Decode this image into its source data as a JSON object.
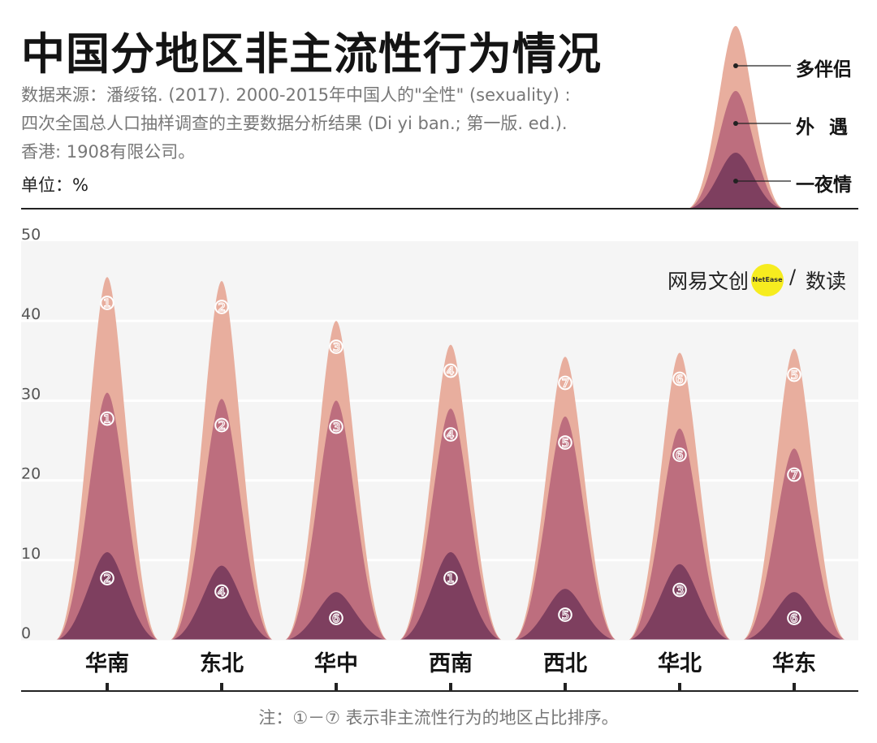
{
  "header": {
    "title": "中国分地区非主流性行为情况",
    "source_line1": "数据来源：潘绥铭. (2017). 2000-2015年中国人的\"全性\" (sexuality) :",
    "source_line2": "四次全国总人口抽样调查的主要数据分析结果 (Di yi ban.; 第一版. ed.).",
    "source_line3": "香港: 1908有限公司。",
    "unit": "单位：%"
  },
  "legend": {
    "items": [
      "多伴侣",
      "外遇",
      "一夜情"
    ],
    "item_label_multi": "多伴侣",
    "item_label_affair": "外遇",
    "item_label_onenight": "一夜情"
  },
  "brand": {
    "text": "网易文创",
    "badge": "NetEase",
    "slash": "/",
    "suffix": "数读"
  },
  "footnote": "注：①－⑦ 表示非主流性行为的地区占比排序。",
  "colors": {
    "multi": "#e8ae9e",
    "affair": "#bd6e7e",
    "onenight": "#7e3f5f",
    "plot_bg": "#f5f5f5",
    "grid": "#ffffff",
    "brand_dot": "#f6ec1f"
  },
  "chart_data": {
    "type": "area",
    "title": "中国分地区非主流性行为情况",
    "ylabel": "单位：%",
    "ylim": [
      0,
      50
    ],
    "yticks": [
      "0",
      "10",
      "20",
      "30",
      "40",
      "50"
    ],
    "categories": [
      "华南",
      "东北",
      "华中",
      "西南",
      "西北",
      "华北",
      "华东"
    ],
    "series": [
      {
        "name": "多伴侣",
        "key": "multi",
        "values": [
          45.5,
          45,
          40,
          37,
          35.5,
          36,
          36.5
        ],
        "ranks": [
          "①",
          "②",
          "③",
          "④",
          "⑦",
          "⑥",
          "⑤"
        ]
      },
      {
        "name": "外遇",
        "key": "affair",
        "values": [
          31,
          30.2,
          30,
          29,
          28,
          26.5,
          24
        ],
        "ranks": [
          "①",
          "②",
          "③",
          "④",
          "⑤",
          "⑥",
          "⑦"
        ]
      },
      {
        "name": "一夜情",
        "key": "onenight",
        "values": [
          11,
          9.3,
          6,
          11,
          6.4,
          9.5,
          6
        ],
        "ranks": [
          "②",
          "④",
          "⑥",
          "①",
          "⑤",
          "③",
          "⑥"
        ]
      }
    ],
    "grid": true
  }
}
